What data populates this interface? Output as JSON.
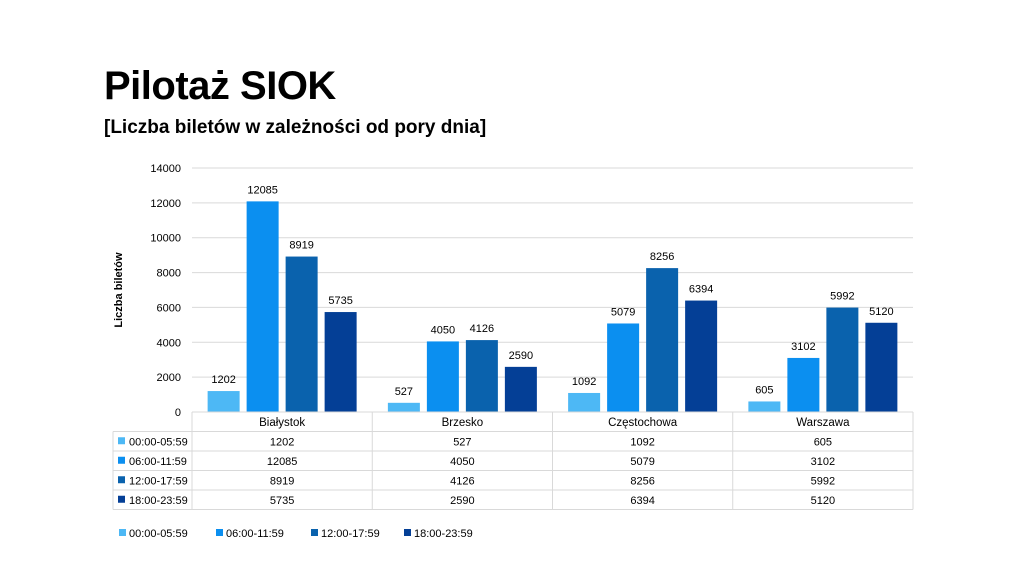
{
  "slide": {
    "title": "Pilotaż SIOK",
    "subtitle": "[Liczba biletów w zależności od pory dnia]"
  },
  "chart_data": {
    "type": "bar",
    "title": "",
    "xlabel": "",
    "ylabel": "Liczba biletów",
    "ylim": [
      0,
      14000
    ],
    "yticks": [
      "0",
      "2000",
      "4000",
      "6000",
      "8000",
      "10000",
      "12000",
      "14000"
    ],
    "grid": true,
    "legend_position": "bottom-left",
    "categories": [
      "Białystok",
      "Brzesko",
      "Częstochowa",
      "Warszawa"
    ],
    "series": [
      {
        "name": "00:00-05:59",
        "color": "#4db8f5",
        "values": [
          1202,
          527,
          1092,
          605
        ]
      },
      {
        "name": "06:00-11:59",
        "color": "#0b8ff0",
        "values": [
          12085,
          4050,
          5079,
          3102
        ]
      },
      {
        "name": "12:00-17:59",
        "color": "#0a62ad",
        "values": [
          8919,
          4126,
          8256,
          5992
        ]
      },
      {
        "name": "18:00-23:59",
        "color": "#043f96",
        "values": [
          5735,
          2590,
          6394,
          5120
        ]
      }
    ]
  }
}
